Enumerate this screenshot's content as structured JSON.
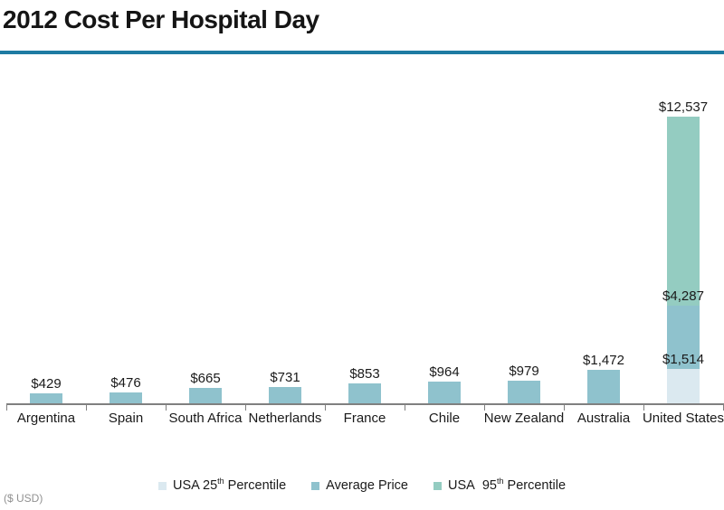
{
  "title": "2012 Cost Per Hospital Day",
  "footer_note": "($ USD)",
  "colors": {
    "divider": "#1e7ba2",
    "axis": "#808080",
    "p25": "#dbe9f0",
    "average": "#8fc2cd",
    "p95": "#94ccc1",
    "text": "#1a1a1a"
  },
  "legend": [
    {
      "key": "p25",
      "text_before_sup": "USA 25",
      "sup": "th",
      "text_after_sup": " Percentile"
    },
    {
      "key": "average",
      "text_before_sup": "Average Price",
      "sup": "",
      "text_after_sup": ""
    },
    {
      "key": "p95",
      "text_before_sup": "USA  95",
      "sup": "th",
      "text_after_sup": " Percentile"
    }
  ],
  "chart_data": {
    "type": "bar",
    "title": "2012 Cost Per Hospital Day",
    "unit": "$ USD",
    "ylim": [
      0,
      12537
    ],
    "grid": false,
    "legend_position": "bottom",
    "categories": [
      "Argentina",
      "Spain",
      "South Africa",
      "Netherlands",
      "France",
      "Chile",
      "New Zealand",
      "Australia",
      "United States"
    ],
    "series": [
      {
        "name": "USA 25th Percentile",
        "values": [
          null,
          null,
          null,
          null,
          null,
          null,
          null,
          null,
          1514
        ]
      },
      {
        "name": "Average Price",
        "values": [
          429,
          476,
          665,
          731,
          853,
          964,
          979,
          1472,
          4287
        ]
      },
      {
        "name": "USA 95th Percentile",
        "values": [
          null,
          null,
          null,
          null,
          null,
          null,
          null,
          null,
          12537
        ]
      }
    ],
    "bars": [
      {
        "category": "Argentina",
        "segments": [
          {
            "key": "average",
            "value": 429,
            "label": "$429"
          }
        ]
      },
      {
        "category": "Spain",
        "segments": [
          {
            "key": "average",
            "value": 476,
            "label": "$476"
          }
        ]
      },
      {
        "category": "South Africa",
        "segments": [
          {
            "key": "average",
            "value": 665,
            "label": "$665"
          }
        ]
      },
      {
        "category": "Netherlands",
        "segments": [
          {
            "key": "average",
            "value": 731,
            "label": "$731"
          }
        ]
      },
      {
        "category": "France",
        "segments": [
          {
            "key": "average",
            "value": 853,
            "label": "$853"
          }
        ]
      },
      {
        "category": "Chile",
        "segments": [
          {
            "key": "average",
            "value": 964,
            "label": "$964"
          }
        ]
      },
      {
        "category": "New Zealand",
        "segments": [
          {
            "key": "average",
            "value": 979,
            "label": "$979"
          }
        ]
      },
      {
        "category": "Australia",
        "segments": [
          {
            "key": "average",
            "value": 1472,
            "label": "$1,472"
          }
        ]
      },
      {
        "category": "United States",
        "segments": [
          {
            "key": "p25",
            "value": 1514,
            "label": "$1,514"
          },
          {
            "key": "average",
            "value": 4287,
            "label": "$4,287"
          },
          {
            "key": "p95",
            "value": 12537,
            "label": "$12,537"
          }
        ]
      }
    ]
  }
}
